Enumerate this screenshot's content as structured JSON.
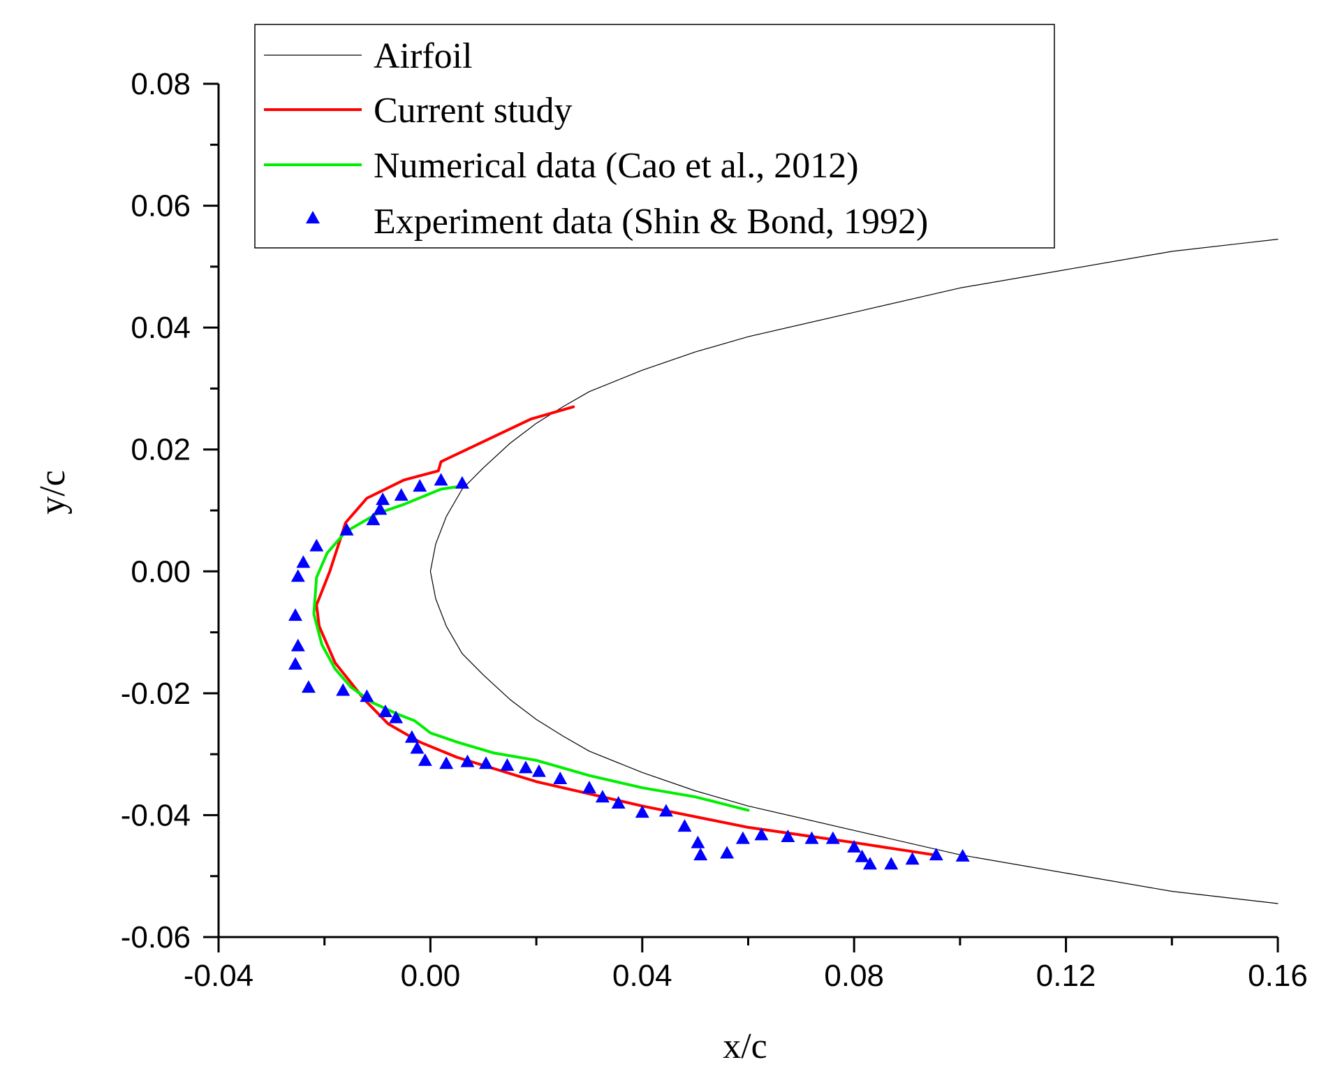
{
  "chart_data": {
    "type": "scatter",
    "title": "",
    "xlabel": "x/c",
    "ylabel": "y/c",
    "xlim": [
      -0.04,
      0.16
    ],
    "ylim": [
      -0.06,
      0.08
    ],
    "x_ticks": [
      -0.04,
      0.0,
      0.04,
      0.08,
      0.12,
      0.16
    ],
    "x_tick_labels": [
      "-0.04",
      "0.00",
      "0.04",
      "0.08",
      "0.12",
      "0.16"
    ],
    "y_ticks": [
      -0.06,
      -0.04,
      -0.02,
      0.0,
      0.02,
      0.04,
      0.06,
      0.08
    ],
    "y_tick_labels": [
      "-0.06",
      "-0.04",
      "-0.02",
      "0.00",
      "0.02",
      "0.04",
      "0.06",
      "0.08"
    ],
    "legend_position": "top",
    "series": [
      {
        "name": "Airfoil",
        "style": "line",
        "color": "#000000",
        "points": [
          [
            0.16,
            0.0545
          ],
          [
            0.14,
            0.0525
          ],
          [
            0.12,
            0.0495
          ],
          [
            0.1,
            0.0465
          ],
          [
            0.08,
            0.0425
          ],
          [
            0.06,
            0.0385
          ],
          [
            0.05,
            0.036
          ],
          [
            0.04,
            0.033
          ],
          [
            0.03,
            0.0295
          ],
          [
            0.025,
            0.027
          ],
          [
            0.02,
            0.0243
          ],
          [
            0.015,
            0.021
          ],
          [
            0.01,
            0.017
          ],
          [
            0.006,
            0.0135
          ],
          [
            0.003,
            0.009
          ],
          [
            0.001,
            0.0045
          ],
          [
            0.0,
            0.0
          ],
          [
            0.001,
            -0.0045
          ],
          [
            0.003,
            -0.009
          ],
          [
            0.006,
            -0.0135
          ],
          [
            0.01,
            -0.017
          ],
          [
            0.015,
            -0.021
          ],
          [
            0.02,
            -0.0243
          ],
          [
            0.025,
            -0.027
          ],
          [
            0.03,
            -0.0295
          ],
          [
            0.04,
            -0.033
          ],
          [
            0.05,
            -0.036
          ],
          [
            0.06,
            -0.0385
          ],
          [
            0.08,
            -0.0425
          ],
          [
            0.1,
            -0.0465
          ],
          [
            0.12,
            -0.0495
          ],
          [
            0.14,
            -0.0525
          ],
          [
            0.16,
            -0.0545
          ]
        ]
      },
      {
        "name": "Current study",
        "style": "line",
        "color": "#ff0000",
        "points": [
          [
            0.027,
            0.027
          ],
          [
            0.019,
            0.025
          ],
          [
            0.002,
            0.018
          ],
          [
            0.0015,
            0.0165
          ],
          [
            -0.005,
            0.015
          ],
          [
            -0.012,
            0.012
          ],
          [
            -0.016,
            0.008
          ],
          [
            -0.019,
            0.0
          ],
          [
            -0.0215,
            -0.0055
          ],
          [
            -0.021,
            -0.009
          ],
          [
            -0.018,
            -0.015
          ],
          [
            -0.0125,
            -0.021
          ],
          [
            -0.008,
            -0.025
          ],
          [
            -0.002,
            -0.028
          ],
          [
            0.005,
            -0.0305
          ],
          [
            0.02,
            -0.0345
          ],
          [
            0.04,
            -0.0385
          ],
          [
            0.06,
            -0.042
          ],
          [
            0.08,
            -0.0445
          ],
          [
            0.095,
            -0.0465
          ]
        ]
      },
      {
        "name": "Numerical data (Cao et al., 2012)",
        "style": "line",
        "color": "#00ee00",
        "points": [
          [
            0.006,
            0.014
          ],
          [
            0.002,
            0.0135
          ],
          [
            -0.005,
            0.011
          ],
          [
            -0.01,
            0.0095
          ],
          [
            -0.016,
            0.0065
          ],
          [
            -0.0195,
            0.003
          ],
          [
            -0.0215,
            -0.001
          ],
          [
            -0.022,
            -0.007
          ],
          [
            -0.0205,
            -0.012
          ],
          [
            -0.018,
            -0.016
          ],
          [
            -0.015,
            -0.019
          ],
          [
            -0.011,
            -0.0215
          ],
          [
            -0.006,
            -0.0235
          ],
          [
            -0.003,
            -0.0245
          ],
          [
            0.0,
            -0.0265
          ],
          [
            0.005,
            -0.028
          ],
          [
            0.012,
            -0.0298
          ],
          [
            0.02,
            -0.031
          ],
          [
            0.03,
            -0.0335
          ],
          [
            0.04,
            -0.0355
          ],
          [
            0.05,
            -0.037
          ],
          [
            0.06,
            -0.0392
          ]
        ]
      },
      {
        "name": "Experiment data (Shin & Bond, 1992)",
        "style": "marker",
        "marker": "triangle",
        "color": "#0000ff",
        "points": [
          [
            0.006,
            0.0145
          ],
          [
            0.002,
            0.015
          ],
          [
            -0.002,
            0.014
          ],
          [
            -0.0055,
            0.0125
          ],
          [
            -0.009,
            0.0118
          ],
          [
            -0.0095,
            0.0102
          ],
          [
            -0.0108,
            0.0085
          ],
          [
            -0.0158,
            0.0068
          ],
          [
            -0.0215,
            0.0042
          ],
          [
            -0.024,
            0.0015
          ],
          [
            -0.025,
            -0.0008
          ],
          [
            -0.0255,
            -0.0072
          ],
          [
            -0.025,
            -0.0122
          ],
          [
            -0.0255,
            -0.0152
          ],
          [
            -0.023,
            -0.019
          ],
          [
            -0.0165,
            -0.0195
          ],
          [
            -0.012,
            -0.0205
          ],
          [
            -0.0085,
            -0.023
          ],
          [
            -0.0065,
            -0.024
          ],
          [
            -0.0035,
            -0.0272
          ],
          [
            -0.0025,
            -0.029
          ],
          [
            -0.001,
            -0.031
          ],
          [
            0.003,
            -0.0315
          ],
          [
            0.007,
            -0.0312
          ],
          [
            0.0105,
            -0.0315
          ],
          [
            0.0145,
            -0.0318
          ],
          [
            0.018,
            -0.0322
          ],
          [
            0.0205,
            -0.0328
          ],
          [
            0.0245,
            -0.034
          ],
          [
            0.03,
            -0.0355
          ],
          [
            0.0325,
            -0.037
          ],
          [
            0.0355,
            -0.038
          ],
          [
            0.04,
            -0.0395
          ],
          [
            0.0445,
            -0.0393
          ],
          [
            0.048,
            -0.0418
          ],
          [
            0.0505,
            -0.0445
          ],
          [
            0.051,
            -0.0465
          ],
          [
            0.056,
            -0.0462
          ],
          [
            0.059,
            -0.0438
          ],
          [
            0.0625,
            -0.0432
          ],
          [
            0.0675,
            -0.0435
          ],
          [
            0.072,
            -0.0438
          ],
          [
            0.076,
            -0.0438
          ],
          [
            0.08,
            -0.0452
          ],
          [
            0.0815,
            -0.0468
          ],
          [
            0.083,
            -0.048
          ],
          [
            0.087,
            -0.048
          ],
          [
            0.091,
            -0.0472
          ],
          [
            0.0955,
            -0.0465
          ],
          [
            0.1005,
            -0.0467
          ]
        ]
      }
    ]
  }
}
